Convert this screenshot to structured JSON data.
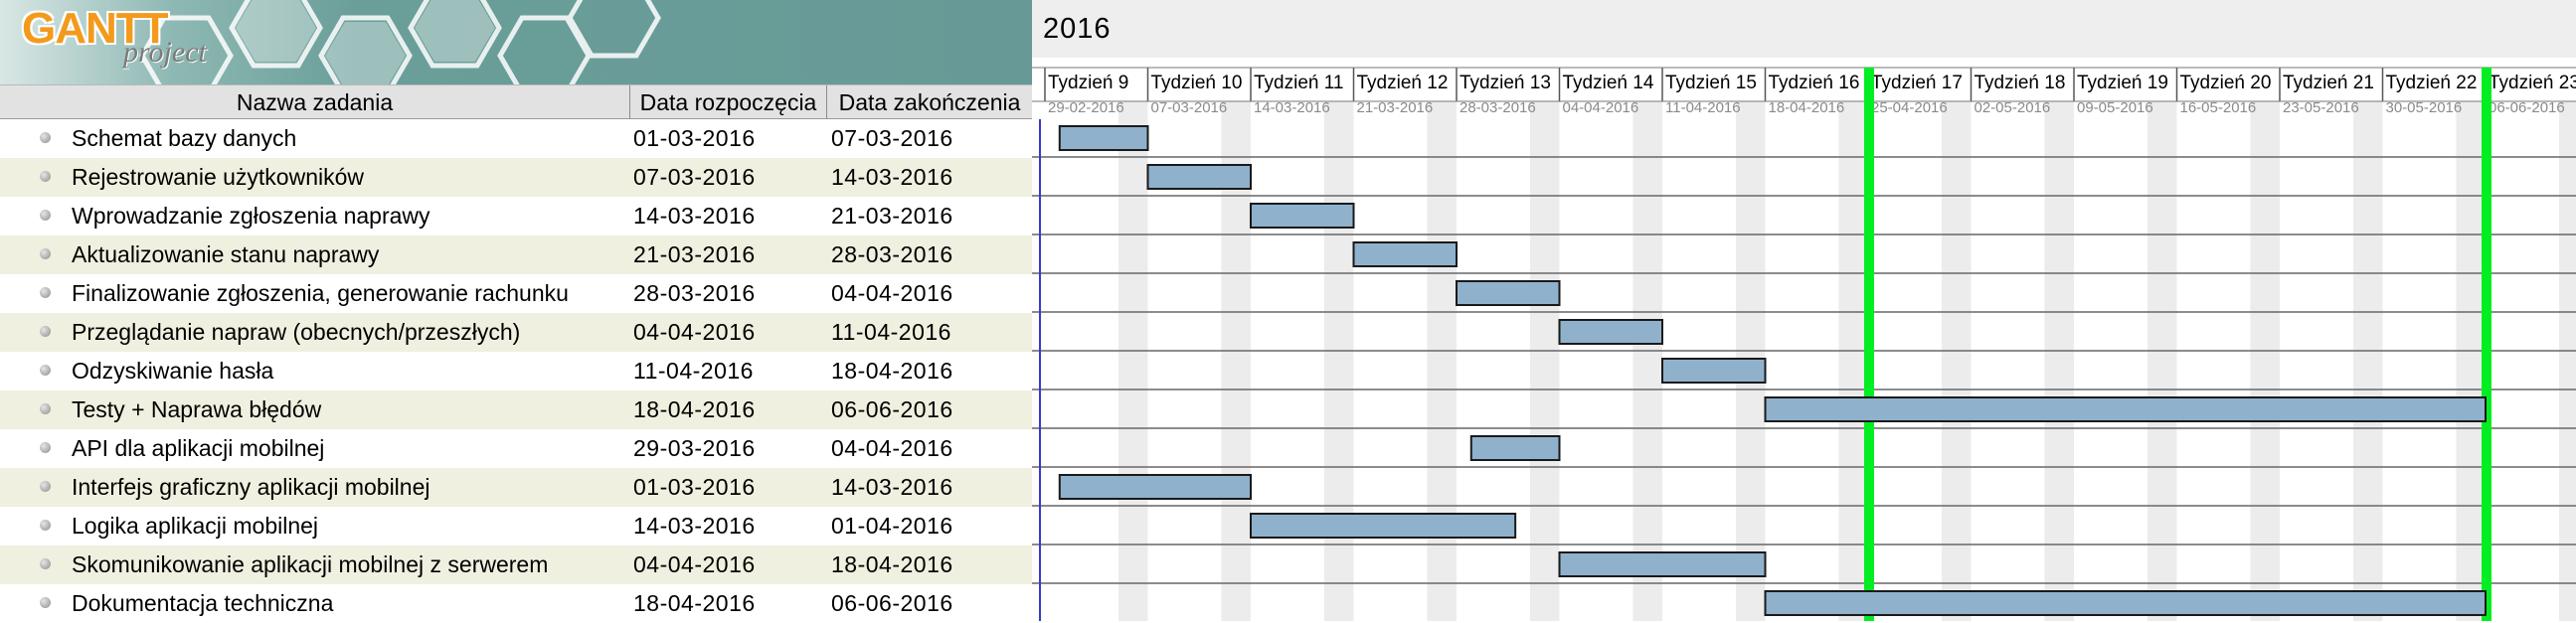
{
  "logo": {
    "brand": "GANTT",
    "sub": "project"
  },
  "table": {
    "headers": {
      "name": "Nazwa zadania",
      "start": "Data rozpoczęcia",
      "end": "Data zakończenia"
    },
    "tasks": [
      {
        "name": "Schemat bazy danych",
        "start": "01-03-2016",
        "end": "07-03-2016"
      },
      {
        "name": "Rejestrowanie użytkowników",
        "start": "07-03-2016",
        "end": "14-03-2016"
      },
      {
        "name": "Wprowadzanie zgłoszenia naprawy",
        "start": "14-03-2016",
        "end": "21-03-2016"
      },
      {
        "name": "Aktualizowanie stanu naprawy",
        "start": "21-03-2016",
        "end": "28-03-2016"
      },
      {
        "name": "Finalizowanie zgłoszenia, generowanie rachunku",
        "start": "28-03-2016",
        "end": "04-04-2016"
      },
      {
        "name": "Przeglądanie napraw (obecnych/przeszłych)",
        "start": "04-04-2016",
        "end": "11-04-2016"
      },
      {
        "name": "Odzyskiwanie hasła",
        "start": "11-04-2016",
        "end": "18-04-2016"
      },
      {
        "name": "Testy + Naprawa błędów",
        "start": "18-04-2016",
        "end": "06-06-2016"
      },
      {
        "name": "API dla aplikacji mobilnej",
        "start": "29-03-2016",
        "end": "04-04-2016"
      },
      {
        "name": "Interfejs graficzny aplikacji mobilnej",
        "start": "01-03-2016",
        "end": "14-03-2016"
      },
      {
        "name": "Logika aplikacji mobilnej",
        "start": "14-03-2016",
        "end": "01-04-2016"
      },
      {
        "name": "Skomunikowanie aplikacji mobilnej z serwerem",
        "start": "04-04-2016",
        "end": "18-04-2016"
      },
      {
        "name": "Dokumentacja techniczna",
        "start": "18-04-2016",
        "end": "06-06-2016"
      }
    ]
  },
  "timeline": {
    "year": "2016",
    "weeks": [
      {
        "label": "Tydzień 9",
        "date": "29-02-2016"
      },
      {
        "label": "Tydzień 10",
        "date": "07-03-2016"
      },
      {
        "label": "Tydzień 11",
        "date": "14-03-2016"
      },
      {
        "label": "Tydzień 12",
        "date": "21-03-2016"
      },
      {
        "label": "Tydzień 13",
        "date": "28-03-2016"
      },
      {
        "label": "Tydzień 14",
        "date": "04-04-2016"
      },
      {
        "label": "Tydzień 15",
        "date": "11-04-2016"
      },
      {
        "label": "Tydzień 16",
        "date": "18-04-2016"
      },
      {
        "label": "Tydzień 17",
        "date": "25-04-2016"
      },
      {
        "label": "Tydzień 18",
        "date": "02-05-2016"
      },
      {
        "label": "Tydzień 19",
        "date": "09-05-2016"
      },
      {
        "label": "Tydzień 20",
        "date": "16-05-2016"
      },
      {
        "label": "Tydzień 21",
        "date": "23-05-2016"
      },
      {
        "label": "Tydzień 22",
        "date": "30-05-2016"
      },
      {
        "label": "Tydzień 23",
        "date": "06-06-2016"
      }
    ],
    "today_markers": [
      "25-04-2016",
      "06-06-2016"
    ]
  },
  "colors": {
    "bar_fill": "#8fb1cc",
    "bar_border": "#1a1a1a",
    "weekend_shade": "#ececec",
    "today_marker": "#00ee22",
    "project_start_line": "#3a3ac8",
    "row_alt": "#eff0df"
  }
}
